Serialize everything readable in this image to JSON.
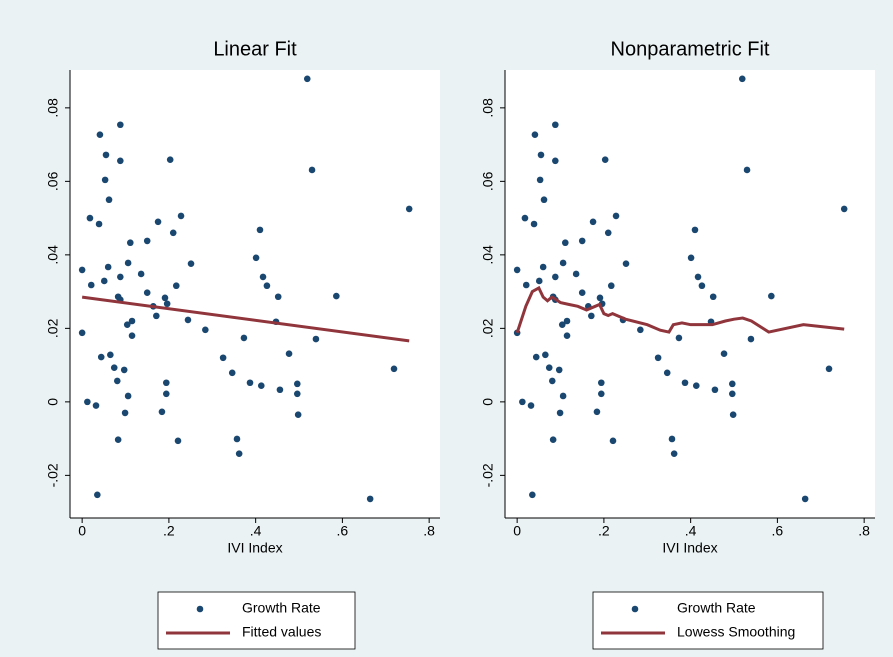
{
  "chart_data": [
    {
      "type": "scatter",
      "title": "Linear Fit",
      "x_label": "IVI Index",
      "xlim": [
        -0.028,
        0.825
      ],
      "ylim": [
        -0.0316,
        0.0903
      ],
      "xticks": [
        0,
        {
          "value": 0.2,
          "label": ".2"
        },
        {
          "value": 0.4,
          "label": ".4"
        },
        {
          "value": 0.6,
          "label": ".6"
        },
        {
          "value": 0.8,
          "label": ".8"
        }
      ],
      "yticks": [
        {
          "value": -0.02,
          "label": "-.02"
        },
        0,
        {
          "value": 0.02,
          "label": ".02"
        },
        {
          "value": 0.04,
          "label": ".04"
        },
        {
          "value": 0.06,
          "label": ".06"
        },
        {
          "value": 0.08,
          "label": ".08"
        }
      ],
      "series": [
        {
          "name": "Growth Rate",
          "color": "#1a476f",
          "x": [
            0,
            0,
            0.012,
            0.021,
            0.018,
            0.032,
            0.035,
            0.041,
            0.039,
            0.044,
            0.051,
            0.053,
            0.055,
            0.06,
            0.062,
            0.065,
            0.074,
            0.081,
            0.083,
            0.083,
            0.088,
            0.088,
            0.088,
            0.088,
            0.097,
            0.099,
            0.104,
            0.106,
            0.106,
            0.111,
            0.115,
            0.115,
            0.136,
            0.15,
            0.15,
            0.164,
            0.171,
            0.175,
            0.184,
            0.191,
            0.194,
            0.194,
            0.196,
            0.203,
            0.21,
            0.217,
            0.221,
            0.228,
            0.244,
            0.251,
            0.284,
            0.325,
            0.346,
            0.357,
            0.362,
            0.373,
            0.387,
            0.401,
            0.41,
            0.413,
            0.417,
            0.426,
            0.447,
            0.452,
            0.456,
            0.477,
            0.496,
            0.496,
            0.498,
            0.519,
            0.53,
            0.539,
            0.586,
            0.664,
            0.719,
            0.754
          ],
          "values": [
            0.0359,
            0.0188,
            0.0,
            0.0318,
            0.05,
            -0.001,
            -0.0253,
            0.0727,
            0.0484,
            0.0122,
            0.0329,
            0.0604,
            0.0672,
            0.0367,
            0.055,
            0.0128,
            0.0093,
            0.0057,
            0.0286,
            -0.0103,
            0.0754,
            0.0656,
            0.034,
            0.0278,
            0.0087,
            -0.003,
            0.021,
            0.0378,
            0.0016,
            0.0433,
            0.018,
            0.022,
            0.0348,
            0.0438,
            0.0297,
            0.026,
            0.0234,
            0.049,
            -0.0027,
            0.0283,
            0.0052,
            0.0022,
            0.0267,
            0.0659,
            0.046,
            0.0316,
            -0.0106,
            0.0506,
            0.0223,
            0.0376,
            0.0196,
            0.012,
            0.0079,
            -0.0101,
            -0.0141,
            0.0174,
            0.0052,
            0.0392,
            0.0468,
            0.0044,
            0.034,
            0.0316,
            0.0218,
            0.0286,
            0.0033,
            0.0131,
            0.0049,
            0.0022,
            -0.0035,
            0.0879,
            0.0631,
            0.0171,
            0.0288,
            -0.0264,
            0.009,
            0.0525
          ]
        },
        {
          "name": "Fitted values",
          "type": "line",
          "color": "#90353b",
          "x": [
            0,
            0.754
          ],
          "values": [
            0.0285,
            0.0166
          ]
        }
      ]
    },
    {
      "type": "scatter",
      "title": "Nonparametric Fit",
      "x_label": "IVI Index",
      "xlim": [
        -0.028,
        0.825
      ],
      "ylim": [
        -0.0316,
        0.0903
      ],
      "xticks": [
        0,
        {
          "value": 0.2,
          "label": ".2"
        },
        {
          "value": 0.4,
          "label": ".4"
        },
        {
          "value": 0.6,
          "label": ".6"
        },
        {
          "value": 0.8,
          "label": ".8"
        }
      ],
      "yticks": [
        {
          "value": -0.02,
          "label": "-.02"
        },
        0,
        {
          "value": 0.02,
          "label": ".02"
        },
        {
          "value": 0.04,
          "label": ".04"
        },
        {
          "value": 0.06,
          "label": ".06"
        },
        {
          "value": 0.08,
          "label": ".08"
        }
      ],
      "series": [
        {
          "name": "Growth Rate",
          "color": "#1a476f",
          "x": [
            0,
            0,
            0.012,
            0.021,
            0.018,
            0.032,
            0.035,
            0.041,
            0.039,
            0.044,
            0.051,
            0.053,
            0.055,
            0.06,
            0.062,
            0.065,
            0.074,
            0.081,
            0.083,
            0.083,
            0.088,
            0.088,
            0.088,
            0.088,
            0.097,
            0.099,
            0.104,
            0.106,
            0.106,
            0.111,
            0.115,
            0.115,
            0.136,
            0.15,
            0.15,
            0.164,
            0.171,
            0.175,
            0.184,
            0.191,
            0.194,
            0.194,
            0.196,
            0.203,
            0.21,
            0.217,
            0.221,
            0.228,
            0.244,
            0.251,
            0.284,
            0.325,
            0.346,
            0.357,
            0.362,
            0.373,
            0.387,
            0.401,
            0.41,
            0.413,
            0.417,
            0.426,
            0.447,
            0.452,
            0.456,
            0.477,
            0.496,
            0.496,
            0.498,
            0.519,
            0.53,
            0.539,
            0.586,
            0.664,
            0.719,
            0.754
          ],
          "values": [
            0.0359,
            0.0188,
            0.0,
            0.0318,
            0.05,
            -0.001,
            -0.0253,
            0.0727,
            0.0484,
            0.0122,
            0.0329,
            0.0604,
            0.0672,
            0.0367,
            0.055,
            0.0128,
            0.0093,
            0.0057,
            0.0286,
            -0.0103,
            0.0754,
            0.0656,
            0.034,
            0.0278,
            0.0087,
            -0.003,
            0.021,
            0.0378,
            0.0016,
            0.0433,
            0.018,
            0.022,
            0.0348,
            0.0438,
            0.0297,
            0.026,
            0.0234,
            0.049,
            -0.0027,
            0.0283,
            0.0052,
            0.0022,
            0.0267,
            0.0659,
            0.046,
            0.0316,
            -0.0106,
            0.0506,
            0.0223,
            0.0376,
            0.0196,
            0.012,
            0.0079,
            -0.0101,
            -0.0141,
            0.0174,
            0.0052,
            0.0392,
            0.0468,
            0.0044,
            0.034,
            0.0316,
            0.0218,
            0.0286,
            0.0033,
            0.0131,
            0.0049,
            0.0022,
            -0.0035,
            0.0879,
            0.0631,
            0.0171,
            0.0288,
            -0.0264,
            0.009,
            0.0525
          ]
        },
        {
          "name": "Lowess Smoothing",
          "type": "line",
          "color": "#90353b",
          "x": [
            0,
            0.02,
            0.035,
            0.05,
            0.06,
            0.07,
            0.08,
            0.09,
            0.1,
            0.12,
            0.14,
            0.16,
            0.18,
            0.19,
            0.2,
            0.21,
            0.22,
            0.23,
            0.25,
            0.3,
            0.33,
            0.35,
            0.36,
            0.38,
            0.4,
            0.45,
            0.48,
            0.5,
            0.52,
            0.54,
            0.58,
            0.66,
            0.754
          ],
          "values": [
            0.0188,
            0.026,
            0.03,
            0.031,
            0.0285,
            0.0275,
            0.0285,
            0.0278,
            0.027,
            0.0265,
            0.026,
            0.025,
            0.026,
            0.0265,
            0.024,
            0.0235,
            0.024,
            0.0235,
            0.0225,
            0.021,
            0.0195,
            0.019,
            0.021,
            0.0215,
            0.021,
            0.021,
            0.022,
            0.0225,
            0.0228,
            0.022,
            0.019,
            0.021,
            0.0198
          ]
        }
      ]
    }
  ]
}
